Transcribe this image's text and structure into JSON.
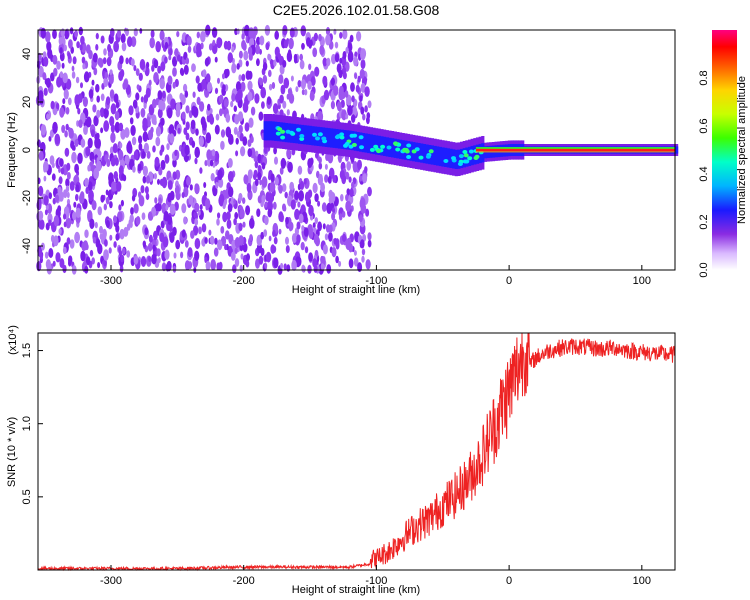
{
  "chart_data": [
    {
      "type": "heatmap",
      "title": "C2E5.2026.102.01.58.G08",
      "xlabel": "Height of straight line (km)",
      "ylabel": "Frequency (Hz)",
      "xlim": [
        -355,
        125
      ],
      "ylim": [
        -50,
        50
      ],
      "xticks": [
        -300,
        -200,
        -100,
        0,
        100
      ],
      "yticks": [
        -40,
        -20,
        0,
        20,
        40
      ],
      "colorbar": {
        "label": "Normalized spectral amplitude",
        "range": [
          0,
          1
        ],
        "ticks": [
          0.0,
          0.2,
          0.4,
          0.6,
          0.8
        ]
      },
      "signal_trace": {
        "description_points_x": [
          -180,
          -150,
          -120,
          -100,
          -80,
          -60,
          -40,
          -20,
          0,
          40,
          80,
          125
        ],
        "frequency_center": [
          8,
          6,
          4,
          2,
          0,
          -2,
          -4,
          -1,
          0,
          0,
          0,
          0
        ]
      }
    },
    {
      "type": "line",
      "xlabel": "Height of straight line (km)",
      "ylabel": "SNR (10 * v/v)",
      "scale_label": "(x10⁴)",
      "xlim": [
        -355,
        125
      ],
      "ylim": [
        0,
        1.62
      ],
      "xticks": [
        -300,
        -200,
        -100,
        0,
        100
      ],
      "yticks": [
        0.5,
        1.0,
        1.5
      ],
      "ytick_labels": [
        "0.5",
        "1.0",
        "1.5"
      ],
      "series": [
        {
          "color": "#ee2222",
          "x": [
            -355,
            -300,
            -250,
            -200,
            -150,
            -120,
            -100,
            -90,
            -80,
            -70,
            -60,
            -50,
            -40,
            -30,
            -20,
            -10,
            0,
            10,
            20,
            30,
            40,
            50,
            60,
            70,
            80,
            90,
            100,
            110,
            125
          ],
          "y": [
            0.01,
            0.01,
            0.01,
            0.02,
            0.02,
            0.02,
            0.05,
            0.1,
            0.18,
            0.25,
            0.3,
            0.38,
            0.45,
            0.55,
            0.7,
            0.9,
            1.1,
            1.35,
            1.45,
            1.5,
            1.52,
            1.53,
            1.52,
            1.51,
            1.52,
            1.5,
            1.49,
            1.48,
            1.47
          ]
        }
      ]
    }
  ]
}
